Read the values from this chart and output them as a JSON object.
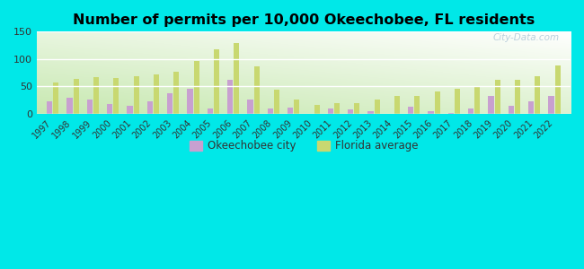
{
  "years": [
    1997,
    1998,
    1999,
    2000,
    2001,
    2002,
    2003,
    2004,
    2005,
    2006,
    2007,
    2008,
    2009,
    2010,
    2011,
    2012,
    2013,
    2014,
    2015,
    2016,
    2017,
    2018,
    2019,
    2020,
    2021,
    2022
  ],
  "okeechobee": [
    22,
    30,
    26,
    18,
    15,
    22,
    38,
    45,
    10,
    62,
    26,
    10,
    11,
    0,
    9,
    8,
    4,
    0,
    13,
    5,
    2,
    10,
    32,
    14,
    22,
    33
  ],
  "florida": [
    58,
    63,
    67,
    66,
    68,
    72,
    77,
    97,
    117,
    130,
    87,
    44,
    26,
    16,
    20,
    20,
    26,
    33,
    33,
    40,
    46,
    51,
    62,
    62,
    69,
    88
  ],
  "title": "Number of permits per 10,000 Okeechobee, FL residents",
  "okeechobee_color": "#c8a0d0",
  "florida_color": "#c8d870",
  "outer_background": "#00e8e8",
  "ylim": [
    0,
    150
  ],
  "yticks": [
    0,
    50,
    100,
    150
  ],
  "legend_okeechobee": "Okeechobee city",
  "legend_florida": "Florida average",
  "watermark": "City-Data.com",
  "grid_color": "#e0e8d0",
  "gradient_top": "#ffffff",
  "gradient_bottom_left": "#c8e8b0"
}
